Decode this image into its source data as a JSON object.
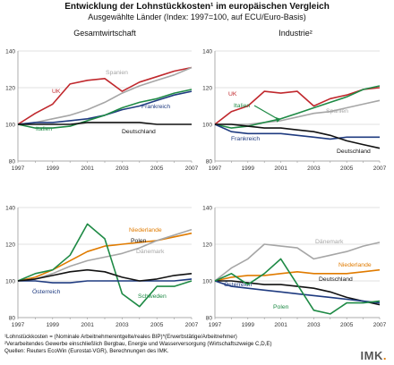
{
  "header": {
    "title": "Entwicklung der Lohnstückkosten¹ im europäischen Vergleich",
    "subtitle": "Ausgewählte Länder (Index: 1997=100, auf ECU/Euro-Basis)"
  },
  "footnotes": [
    "¹Lohnstückkosten = (Nominale Arbeitnehmerentgelte/reales BIP)*(Erwerbstätige/Arbeitnehmer)",
    "²Verarbeitendes Gewerbe einschließlich Bergbau, Energie und Wasserversorgung (Wirtschaftszweige C,D,E)",
    "Quellen: Reuters EcoWin (Eurostat-VGR), Berechnungen des IMK."
  ],
  "logo": {
    "text": "IMK",
    "dot": "."
  },
  "chart_data": [
    {
      "type": "line",
      "title": "Gesamtwirtschaft",
      "x": [
        1997,
        1998,
        1999,
        2000,
        2001,
        2002,
        2003,
        2004,
        2005,
        2006,
        2007
      ],
      "xticks": [
        1997,
        1999,
        2001,
        2003,
        2005,
        2007
      ],
      "ylim": [
        80,
        140
      ],
      "yticks": [
        80,
        100,
        120,
        140
      ],
      "series": [
        {
          "name": "UK",
          "color": "#c0282d",
          "values": [
            100,
            106,
            111,
            122,
            124,
            125,
            118,
            123,
            126,
            129,
            131
          ]
        },
        {
          "name": "Spanien",
          "color": "#a6a6a6",
          "values": [
            100,
            101,
            103,
            105,
            108,
            112,
            117,
            121,
            124,
            127,
            131
          ]
        },
        {
          "name": "Frankreich",
          "color": "#1f3b80",
          "values": [
            100,
            101,
            101,
            102,
            103,
            105,
            108,
            110,
            113,
            116,
            118
          ]
        },
        {
          "name": "Italien",
          "color": "#1e8a45",
          "values": [
            100,
            98,
            98,
            99,
            102,
            105,
            109,
            112,
            114,
            117,
            119
          ]
        },
        {
          "name": "Deutschland",
          "color": "#111111",
          "values": [
            100,
            100,
            100,
            100,
            101,
            101,
            101,
            101,
            100,
            100,
            100
          ]
        }
      ]
    },
    {
      "type": "line",
      "title": "Industrie²",
      "x": [
        1997,
        1998,
        1999,
        2000,
        2001,
        2002,
        2003,
        2004,
        2005,
        2006,
        2007
      ],
      "xticks": [
        1997,
        1999,
        2001,
        2003,
        2005,
        2007
      ],
      "ylim": [
        80,
        140
      ],
      "yticks": [
        80,
        100,
        120,
        140
      ],
      "series": [
        {
          "name": "UK",
          "color": "#c0282d",
          "values": [
            100,
            107,
            110,
            118,
            117,
            118,
            110,
            114,
            116,
            119,
            120
          ]
        },
        {
          "name": "Spanien",
          "color": "#a6a6a6",
          "values": [
            100,
            100,
            100,
            101,
            102,
            104,
            106,
            107,
            109,
            111,
            113
          ]
        },
        {
          "name": "Italien",
          "color": "#1e8a45",
          "values": [
            100,
            98,
            99,
            101,
            103,
            106,
            109,
            112,
            115,
            119,
            121
          ]
        },
        {
          "name": "Frankreich",
          "color": "#1f3b80",
          "values": [
            100,
            96,
            95,
            95,
            95,
            94,
            93,
            92,
            93,
            93,
            93
          ]
        },
        {
          "name": "Deutschland",
          "color": "#111111",
          "values": [
            100,
            100,
            99,
            98,
            98,
            97,
            96,
            94,
            91,
            89,
            87
          ]
        }
      ]
    },
    {
      "type": "line",
      "title": "",
      "x": [
        1997,
        1998,
        1999,
        2000,
        2001,
        2002,
        2003,
        2004,
        2005,
        2006,
        2007
      ],
      "xticks": [
        1997,
        1999,
        2001,
        2003,
        2005,
        2007
      ],
      "ylim": [
        80,
        140
      ],
      "yticks": [
        80,
        100,
        120,
        140
      ],
      "series": [
        {
          "name": "Niederlande",
          "color": "#e07b00",
          "values": [
            100,
            102,
            106,
            111,
            116,
            119,
            120,
            121,
            122,
            124,
            126
          ]
        },
        {
          "name": "Dänemark",
          "color": "#a6a6a6",
          "values": [
            100,
            101,
            104,
            108,
            111,
            113,
            115,
            118,
            122,
            125,
            128
          ]
        },
        {
          "name": "Schweden",
          "color": "#1e8a45",
          "values": [
            100,
            104,
            106,
            114,
            131,
            123,
            93,
            86,
            97,
            97,
            100
          ]
        },
        {
          "name": "Österreich",
          "color": "#1f3b80",
          "values": [
            100,
            100,
            99,
            99,
            100,
            100,
            100,
            100,
            100,
            100,
            101
          ]
        },
        {
          "name": "Polen",
          "color": "#111111",
          "values": [
            100,
            101,
            103,
            105,
            106,
            105,
            102,
            100,
            101,
            103,
            104
          ]
        }
      ]
    },
    {
      "type": "line",
      "title": "",
      "x": [
        1997,
        1998,
        1999,
        2000,
        2001,
        2002,
        2003,
        2004,
        2005,
        2006,
        2007
      ],
      "xticks": [
        1997,
        1999,
        2001,
        2003,
        2005,
        2007
      ],
      "ylim": [
        80,
        140
      ],
      "yticks": [
        80,
        100,
        120,
        140
      ],
      "series": [
        {
          "name": "Dänemark",
          "color": "#a6a6a6",
          "values": [
            100,
            107,
            112,
            120,
            119,
            118,
            112,
            114,
            116,
            119,
            121
          ]
        },
        {
          "name": "Niederlande",
          "color": "#e07b00",
          "values": [
            100,
            102,
            103,
            103,
            104,
            105,
            104,
            104,
            104,
            105,
            106
          ]
        },
        {
          "name": "Deutschland",
          "color": "#111111",
          "values": [
            100,
            100,
            99,
            98,
            98,
            97,
            96,
            94,
            91,
            89,
            87
          ]
        },
        {
          "name": "Österreich",
          "color": "#1f3b80",
          "values": [
            100,
            97,
            96,
            95,
            94,
            93,
            92,
            91,
            90,
            89,
            88
          ]
        },
        {
          "name": "Polen",
          "color": "#1e8a45",
          "values": [
            100,
            104,
            98,
            104,
            112,
            98,
            84,
            82,
            88,
            88,
            89
          ]
        }
      ]
    }
  ]
}
